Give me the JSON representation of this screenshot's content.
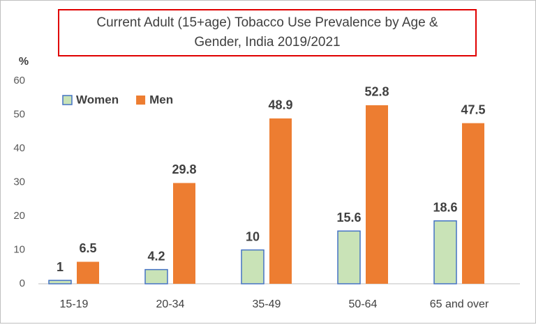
{
  "chart_data": {
    "type": "bar",
    "title": [
      "Current Adult (15+age) Tobacco Use Prevalence by Age &",
      "Gender,  India 2019/2021"
    ],
    "y_label": "%",
    "categories": [
      "15-19",
      "20-34",
      "35-49",
      "50-64",
      "65 and over"
    ],
    "series": [
      {
        "name": "Women",
        "color": "#c9e3b7",
        "edge_color": "#4472c4",
        "values": [
          1,
          4.2,
          10,
          15.6,
          18.6
        ]
      },
      {
        "name": "Men",
        "color": "#ed7d31",
        "values": [
          6.5,
          29.8,
          48.9,
          52.8,
          47.5
        ]
      }
    ],
    "ylim": [
      0,
      60
    ],
    "yticks": [
      0,
      10,
      20,
      30,
      40,
      50,
      60
    ],
    "grid": false,
    "data_labels": true,
    "legend": "upper left"
  }
}
